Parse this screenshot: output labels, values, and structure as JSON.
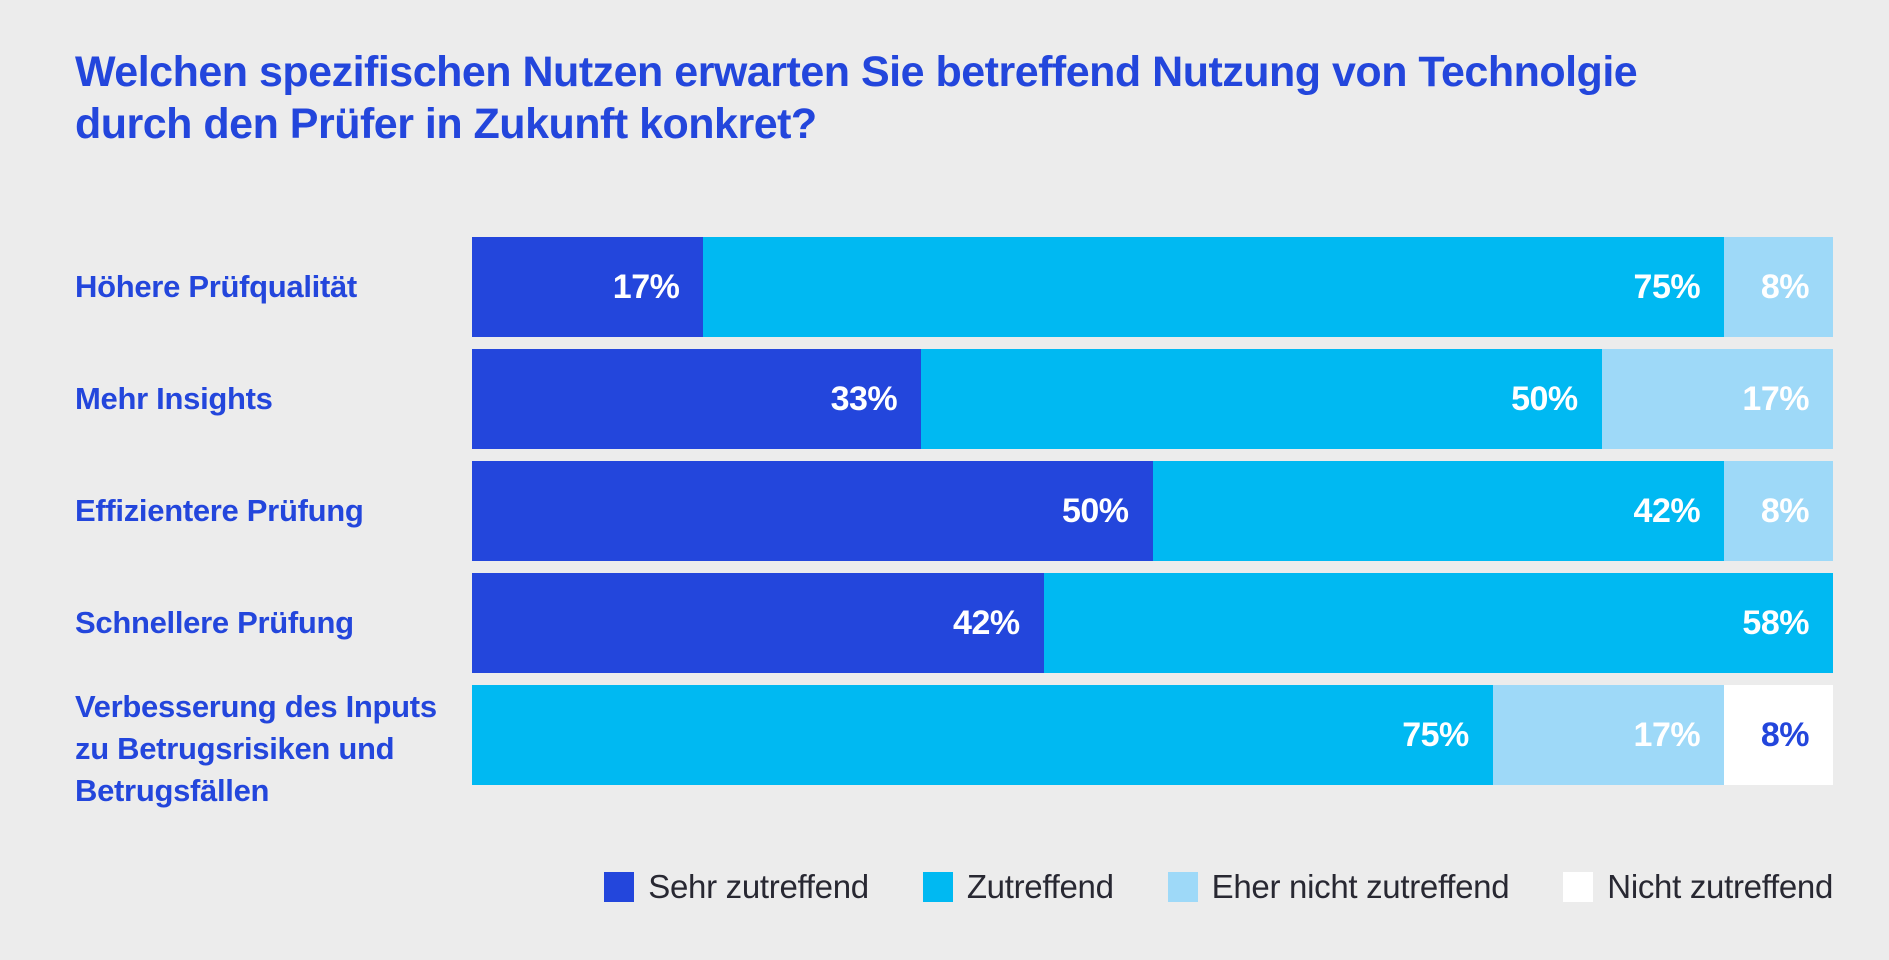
{
  "title": {
    "line1": "Welchen spezifischen Nutzen erwarten Sie betreffend Nutzung von Technolgie",
    "line2": "durch den Prüfer in Zukunft konkret?"
  },
  "colors": {
    "background": "#ECECEC",
    "title_text": "#2346DC",
    "category_text": "#2346DC",
    "legend_text": "#282832"
  },
  "chart_data": {
    "type": "bar",
    "orientation": "horizontal_stacked",
    "unit": "%",
    "xlim": [
      0,
      100
    ],
    "grid": false,
    "legend_position": "bottom-right",
    "title": "Welchen spezifischen Nutzen erwarten Sie betreffend Nutzung von Technolgie durch den Prüfer in Zukunft konkret?",
    "categories": [
      "Höhere Prüfqualität",
      "Mehr Insights",
      "Effizientere Prüfung",
      "Schnellere Prüfung",
      "Verbesserung des Inputs zu Betrugsrisiken und Betrugsfällen"
    ],
    "category_label_valign": [
      "center",
      "center",
      "center",
      "center",
      "top"
    ],
    "series": [
      {
        "name": "Sehr zutreffend",
        "color": "#2346DC",
        "label_color": "#FFFFFF",
        "values": [
          17,
          33,
          50,
          42,
          0
        ]
      },
      {
        "name": "Zutreffend",
        "color": "#00B9F2",
        "label_color": "#FFFFFF",
        "values": [
          75,
          50,
          42,
          58,
          75
        ]
      },
      {
        "name": "Eher nicht zutreffend",
        "color": "#9ED9F8",
        "label_color": "#FFFFFF",
        "values": [
          8,
          17,
          8,
          0,
          17
        ]
      },
      {
        "name": "Nicht zutreffend",
        "color": "#FFFFFF",
        "label_color": "#2346DC",
        "values": [
          0,
          0,
          0,
          0,
          8
        ]
      }
    ],
    "value_label_format": "{value}%"
  }
}
